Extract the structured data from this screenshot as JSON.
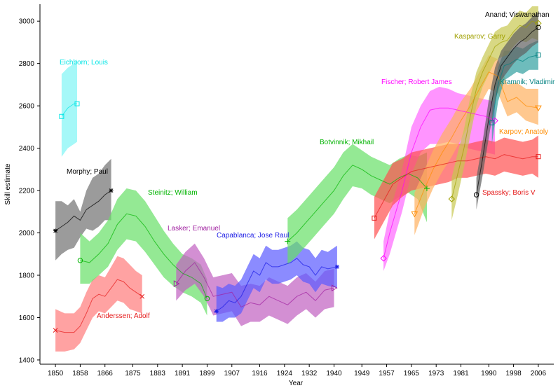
{
  "chart_data": {
    "type": "line",
    "xlabel": "Year",
    "ylabel": "Skill estimate",
    "xlim": [
      1845,
      2011
    ],
    "ylim": [
      1380,
      3080
    ],
    "xticks": [
      1850,
      1858,
      1866,
      1875,
      1883,
      1891,
      1899,
      1907,
      1916,
      1924,
      1932,
      1940,
      1949,
      1957,
      1965,
      1973,
      1981,
      1990,
      1998,
      2006
    ],
    "yticks": [
      1400,
      1600,
      1800,
      2000,
      2200,
      2400,
      2600,
      2800,
      3000
    ],
    "legend": "direct labels",
    "series": [
      {
        "name": "Eichborn; Louis",
        "color": "#00e5e5",
        "fill": "#7ff5f5",
        "marker": "square",
        "x": [
          1852,
          1854,
          1856,
          1857
        ],
        "y": [
          2550,
          2590,
          2610,
          2610
        ],
        "lower": [
          2360,
          2400,
          2420,
          2430
        ],
        "upper": [
          2750,
          2780,
          2800,
          2820
        ],
        "label": "Eichborn; Louis"
      },
      {
        "name": "Morphy; Paul",
        "color": "#000000",
        "fill": "#707070",
        "marker": "star",
        "x": [
          1850,
          1852,
          1854,
          1856,
          1858,
          1860,
          1862,
          1864,
          1866,
          1868
        ],
        "y": [
          2010,
          2030,
          2050,
          2080,
          2060,
          2110,
          2130,
          2150,
          2180,
          2200
        ],
        "lower": [
          1870,
          1900,
          1920,
          1930,
          1980,
          2020,
          2010,
          2030,
          2060,
          2060
        ],
        "upper": [
          2150,
          2150,
          2130,
          2160,
          2100,
          2200,
          2260,
          2280,
          2320,
          2350
        ],
        "label": "Morphy; Paul"
      },
      {
        "name": "Anderssen; Adolf",
        "color": "#e51a1a",
        "fill": "#ff7a7a",
        "marker": "x",
        "x": [
          1850,
          1853,
          1856,
          1858,
          1860,
          1862,
          1864,
          1866,
          1868,
          1870,
          1872,
          1874,
          1876,
          1878
        ],
        "y": [
          1540,
          1530,
          1530,
          1560,
          1620,
          1690,
          1710,
          1700,
          1740,
          1780,
          1770,
          1740,
          1720,
          1700
        ],
        "lower": [
          1440,
          1440,
          1450,
          1480,
          1540,
          1600,
          1630,
          1620,
          1650,
          1680,
          1670,
          1640,
          1630,
          1620
        ],
        "upper": [
          1640,
          1620,
          1620,
          1650,
          1720,
          1780,
          1800,
          1790,
          1840,
          1890,
          1880,
          1850,
          1820,
          1800
        ],
        "label": "Anderssen; Adolf"
      },
      {
        "name": "Steinitz; William",
        "color": "#00b300",
        "fill": "#66e066",
        "marker": "circle",
        "x": [
          1858,
          1861,
          1864,
          1867,
          1870,
          1873,
          1876,
          1879,
          1882,
          1885,
          1888,
          1891,
          1894,
          1897,
          1899
        ],
        "y": [
          1870,
          1860,
          1900,
          1950,
          2040,
          2090,
          2080,
          2030,
          1960,
          1900,
          1850,
          1810,
          1790,
          1760,
          1690
        ],
        "lower": [
          1760,
          1760,
          1800,
          1840,
          1920,
          1970,
          1960,
          1910,
          1850,
          1790,
          1750,
          1720,
          1700,
          1670,
          1610
        ],
        "upper": [
          2000,
          1960,
          2000,
          2060,
          2160,
          2210,
          2200,
          2150,
          2080,
          2010,
          1950,
          1900,
          1880,
          1850,
          1780
        ],
        "label": "Steinitz; William"
      },
      {
        "name": "Lasker; Emanuel",
        "color": "#a020a0",
        "fill": "#c060c0",
        "marker": "triangle-right",
        "x": [
          1889,
          1892,
          1895,
          1898,
          1901,
          1904,
          1907,
          1910,
          1913,
          1916,
          1919,
          1922,
          1925,
          1928,
          1931,
          1934,
          1937,
          1940
        ],
        "y": [
          1760,
          1820,
          1860,
          1790,
          1700,
          1710,
          1720,
          1650,
          1670,
          1660,
          1700,
          1680,
          1660,
          1700,
          1720,
          1680,
          1730,
          1740
        ],
        "lower": [
          1680,
          1730,
          1760,
          1700,
          1610,
          1620,
          1630,
          1560,
          1580,
          1580,
          1610,
          1590,
          1570,
          1610,
          1640,
          1600,
          1640,
          1650
        ],
        "upper": [
          1850,
          1910,
          1950,
          1880,
          1790,
          1800,
          1810,
          1750,
          1760,
          1750,
          1790,
          1770,
          1750,
          1790,
          1810,
          1770,
          1820,
          1830
        ],
        "label": "Lasker; Emanuel"
      },
      {
        "name": "Capablanca; Jose Raul",
        "color": "#1a1ae5",
        "fill": "#5a5aff",
        "marker": "star",
        "x": [
          1902,
          1904,
          1906,
          1908,
          1910,
          1912,
          1914,
          1916,
          1918,
          1920,
          1922,
          1924,
          1926,
          1928,
          1930,
          1932,
          1934,
          1936,
          1938,
          1941
        ],
        "y": [
          1630,
          1650,
          1680,
          1670,
          1700,
          1760,
          1820,
          1800,
          1860,
          1840,
          1840,
          1850,
          1860,
          1880,
          1850,
          1840,
          1800,
          1840,
          1830,
          1840
        ],
        "lower": [
          1580,
          1580,
          1600,
          1600,
          1620,
          1680,
          1740,
          1720,
          1780,
          1760,
          1760,
          1770,
          1780,
          1800,
          1770,
          1760,
          1720,
          1760,
          1750,
          1740
        ],
        "upper": [
          1750,
          1740,
          1760,
          1750,
          1780,
          1840,
          1900,
          1880,
          1940,
          1920,
          1920,
          1930,
          1940,
          1960,
          1930,
          1920,
          1880,
          1920,
          1910,
          1940
        ],
        "label": "Capablanca; Jose Raul"
      },
      {
        "name": "Botvinnik; Mikhail",
        "color": "#00b300",
        "fill": "#66e066",
        "marker": "plus",
        "x": [
          1925,
          1928,
          1931,
          1934,
          1937,
          1940,
          1943,
          1946,
          1949,
          1952,
          1955,
          1958,
          1961,
          1964,
          1967,
          1970
        ],
        "y": [
          1960,
          2000,
          2050,
          2100,
          2150,
          2200,
          2270,
          2320,
          2300,
          2270,
          2250,
          2230,
          2260,
          2280,
          2260,
          2210
        ],
        "lower": [
          1850,
          1890,
          1940,
          1990,
          2040,
          2090,
          2160,
          2220,
          2210,
          2180,
          2160,
          2140,
          2170,
          2190,
          2160,
          2050
        ],
        "upper": [
          2070,
          2110,
          2160,
          2210,
          2260,
          2310,
          2380,
          2420,
          2390,
          2360,
          2340,
          2320,
          2350,
          2370,
          2360,
          2380
        ],
        "label": "Botvinnik; Mikhail"
      },
      {
        "name": "Fischer; Robert James",
        "color": "#ff00ff",
        "fill": "#ff66ff",
        "marker": "diamond",
        "x": [
          1956,
          1958,
          1960,
          1962,
          1965,
          1968,
          1971,
          1974,
          1977,
          1980,
          1983,
          1986,
          1989,
          1992
        ],
        "y": [
          1880,
          2000,
          2100,
          2200,
          2380,
          2500,
          2580,
          2590,
          2590,
          2580,
          2570,
          2560,
          2550,
          2530
        ],
        "lower": [
          1820,
          1900,
          2000,
          2100,
          2280,
          2380,
          2420,
          2420,
          2430,
          2420,
          2400,
          2390,
          2380,
          2370
        ],
        "upper": [
          1960,
          2100,
          2200,
          2300,
          2500,
          2600,
          2670,
          2690,
          2680,
          2660,
          2650,
          2640,
          2630,
          2620
        ],
        "label": "Fischer; Robert James"
      },
      {
        "name": "Spassky; Boris V",
        "color": "#e51a1a",
        "fill": "#ff5050",
        "marker": "square",
        "x": [
          1953,
          1956,
          1959,
          1962,
          1965,
          1968,
          1971,
          1974,
          1977,
          1980,
          1983,
          1986,
          1989,
          1992,
          1995,
          1998,
          2001,
          2004,
          2006
        ],
        "y": [
          2070,
          2150,
          2230,
          2260,
          2290,
          2300,
          2310,
          2320,
          2330,
          2340,
          2340,
          2350,
          2360,
          2350,
          2370,
          2360,
          2350,
          2360,
          2360
        ],
        "lower": [
          1970,
          2050,
          2130,
          2170,
          2200,
          2210,
          2220,
          2230,
          2240,
          2260,
          2260,
          2270,
          2280,
          2270,
          2290,
          2280,
          2270,
          2280,
          2260
        ],
        "upper": [
          2170,
          2250,
          2330,
          2350,
          2380,
          2390,
          2400,
          2410,
          2420,
          2420,
          2420,
          2430,
          2440,
          2430,
          2450,
          2440,
          2430,
          2440,
          2460
        ],
        "label": "Spassky; Boris V"
      },
      {
        "name": "Karpov; Anatoly",
        "color": "#ff8c00",
        "fill": "#ffb060",
        "marker": "triangle-down",
        "x": [
          1966,
          1969,
          1972,
          1975,
          1978,
          1981,
          1984,
          1987,
          1990,
          1993,
          1996,
          1999,
          2002,
          2006
        ],
        "y": [
          2090,
          2200,
          2300,
          2380,
          2450,
          2530,
          2600,
          2680,
          2760,
          2740,
          2620,
          2640,
          2600,
          2590
        ],
        "lower": [
          1990,
          2110,
          2210,
          2290,
          2360,
          2440,
          2520,
          2600,
          2680,
          2660,
          2550,
          2570,
          2530,
          2510
        ],
        "upper": [
          2190,
          2290,
          2390,
          2470,
          2540,
          2620,
          2680,
          2760,
          2840,
          2820,
          2700,
          2710,
          2680,
          2680
        ],
        "label": "Karpov; Anatoly"
      },
      {
        "name": "Kramnik; Vladimir",
        "color": "#008080",
        "fill": "#30a0a0",
        "marker": "square",
        "x": [
          1991,
          1993,
          1995,
          1997,
          1999,
          2001,
          2003,
          2006
        ],
        "y": [
          2520,
          2700,
          2790,
          2800,
          2820,
          2810,
          2830,
          2840
        ],
        "lower": [
          2420,
          2620,
          2720,
          2740,
          2760,
          2750,
          2770,
          2770
        ],
        "upper": [
          2620,
          2780,
          2860,
          2860,
          2880,
          2870,
          2890,
          2910
        ],
        "label": "Kramnik; Vladimir"
      },
      {
        "name": "Kasparov; Garry",
        "color": "#a0a000",
        "fill": "#c8c850",
        "marker": "diamond",
        "x": [
          1978,
          1980,
          1982,
          1984,
          1986,
          1988,
          1990,
          1992,
          1994,
          1996,
          1998,
          2000,
          2002,
          2004,
          2006
        ],
        "y": [
          2160,
          2280,
          2400,
          2550,
          2680,
          2760,
          2820,
          2880,
          2900,
          2910,
          2950,
          2980,
          2970,
          3000,
          2990
        ],
        "lower": [
          2060,
          2180,
          2310,
          2460,
          2600,
          2690,
          2750,
          2810,
          2830,
          2840,
          2880,
          2910,
          2900,
          2920,
          2910
        ],
        "upper": [
          2260,
          2380,
          2490,
          2640,
          2760,
          2830,
          2890,
          2950,
          2970,
          2980,
          3020,
          3050,
          3040,
          3070,
          3070
        ],
        "label": "Kasparov; Garry"
      },
      {
        "name": "Anand; Viswanathan",
        "color": "#000000",
        "fill": "#606060",
        "marker": "circle",
        "x": [
          1986,
          1988,
          1990,
          1992,
          1994,
          1996,
          1998,
          2000,
          2002,
          2004,
          2006
        ],
        "y": [
          2180,
          2350,
          2540,
          2700,
          2790,
          2830,
          2870,
          2900,
          2920,
          2950,
          2970
        ],
        "lower": [
          2110,
          2270,
          2450,
          2620,
          2720,
          2760,
          2800,
          2830,
          2850,
          2880,
          2900
        ],
        "upper": [
          2260,
          2430,
          2630,
          2780,
          2860,
          2900,
          2940,
          2970,
          2990,
          3020,
          3040
        ],
        "label": "Anand; Viswanathan"
      }
    ]
  }
}
